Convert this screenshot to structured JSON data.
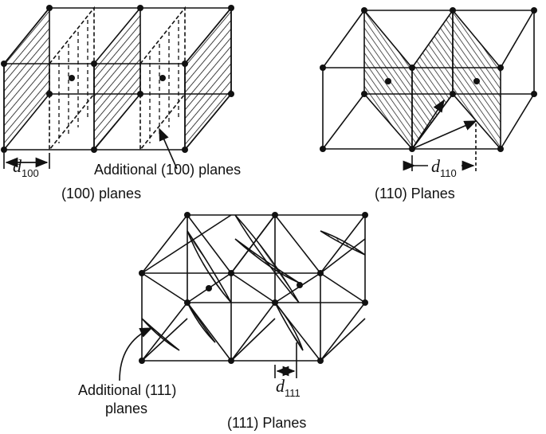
{
  "panels": {
    "p100": {
      "title": "(100) planes",
      "annotation": "Additional (100) planes",
      "d_symbol": "d",
      "d_sub": "100"
    },
    "p110": {
      "title": "(110) Planes",
      "d_symbol": "d",
      "d_sub": "110"
    },
    "p111": {
      "title": "(111) Planes",
      "annotation_line1": "Additional (111)",
      "annotation_line2": "planes",
      "d_symbol": "d",
      "d_sub": "111"
    }
  },
  "colors": {
    "ink": "#111111",
    "background": "#ffffff"
  }
}
